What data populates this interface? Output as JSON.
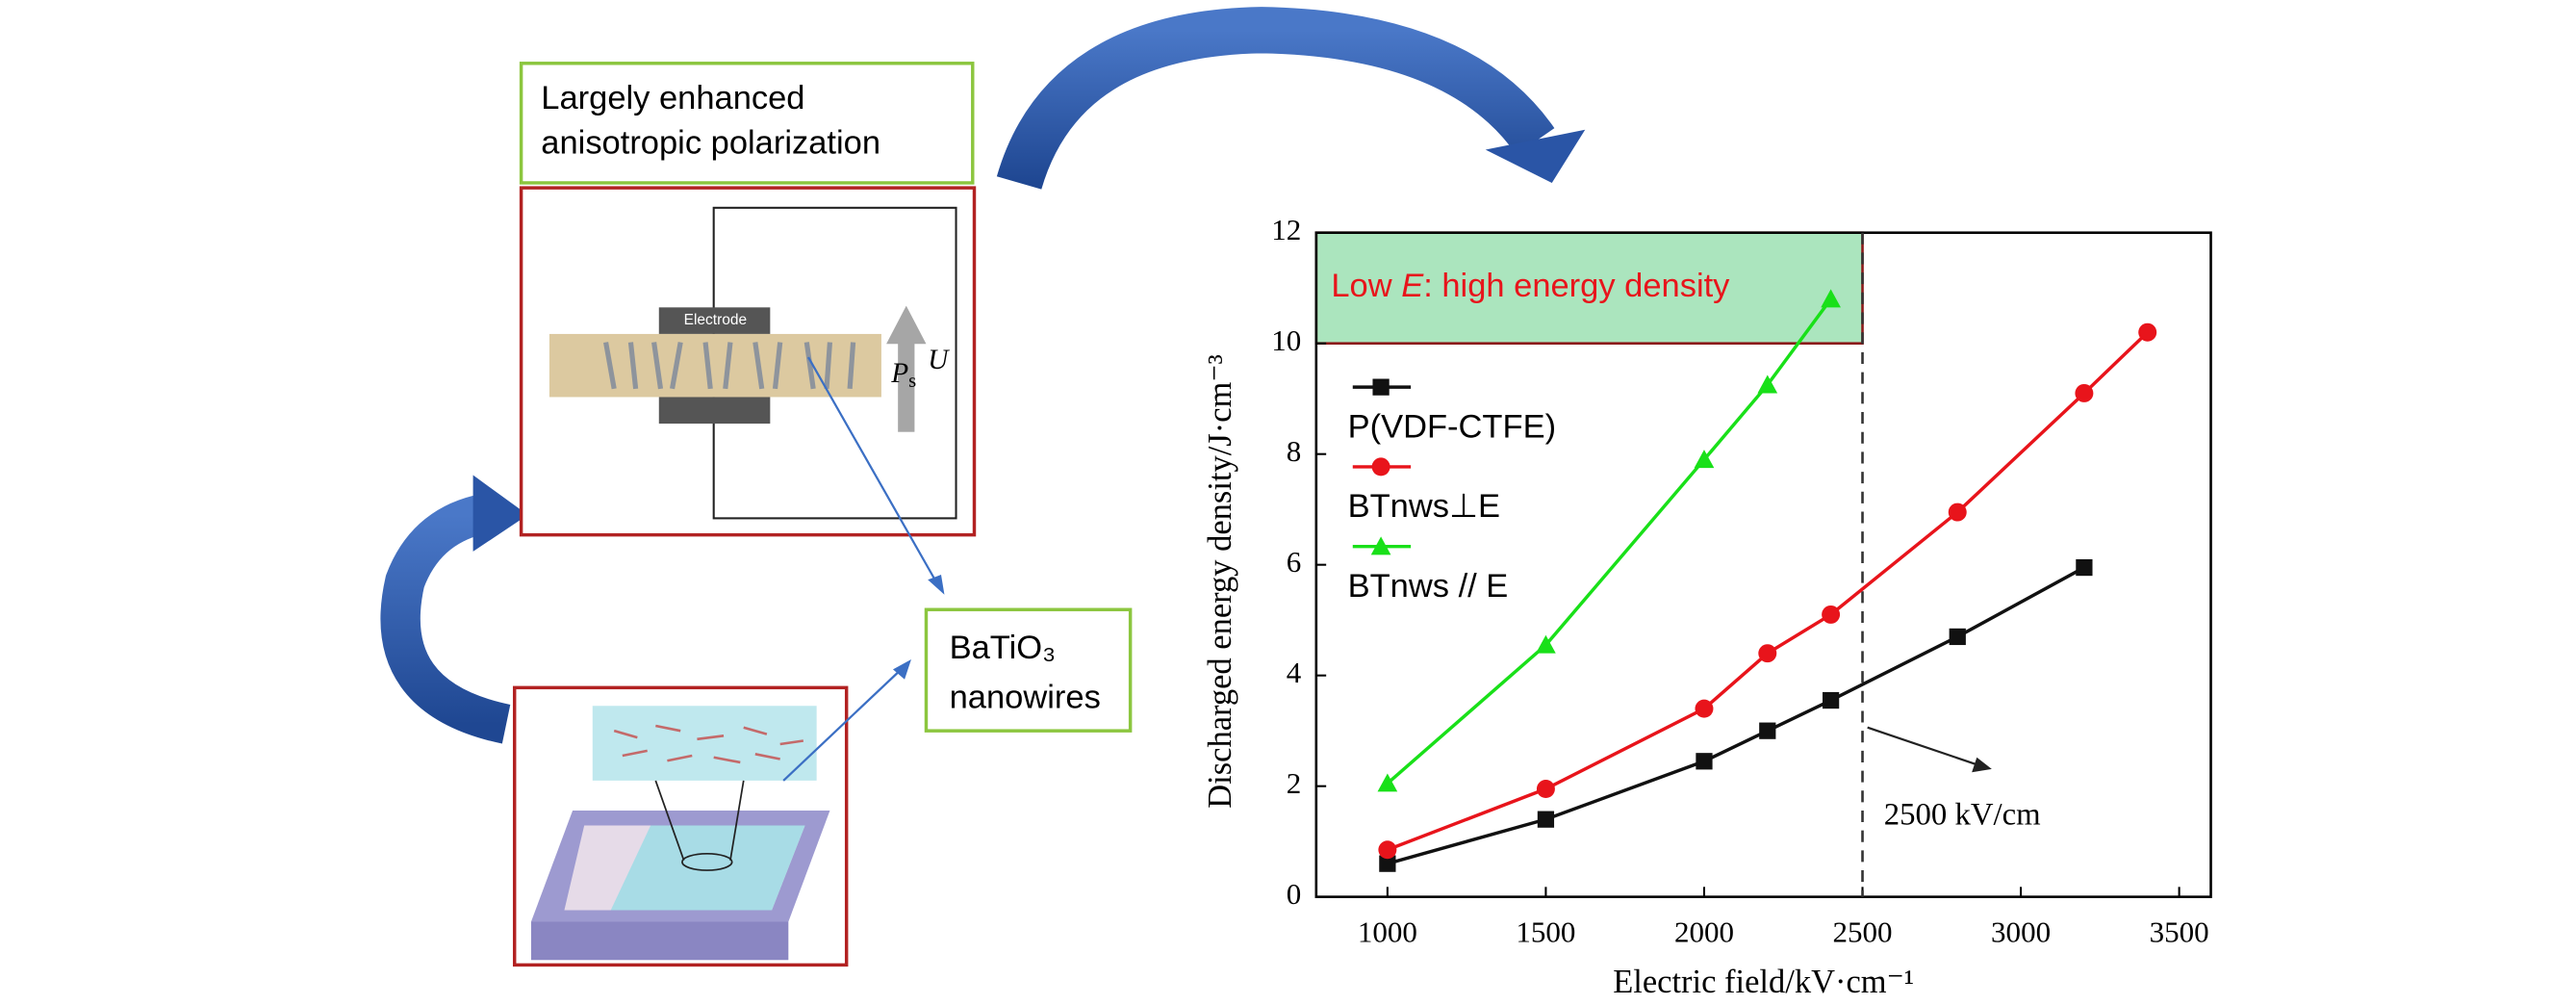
{
  "diagram": {
    "polarization_box": [
      "Largely enhanced",
      "anisotropic polarization"
    ],
    "electrode": "Electrode",
    "ps_symbol": "P",
    "ps_subscript": "s",
    "voltage": "U",
    "nanowires_box": [
      "BaTiO₃",
      "nanowires"
    ]
  },
  "chart_data": {
    "type": "line",
    "xlabel": "Electric field/kV·cm⁻¹",
    "ylabel": "Discharged energy density/J·cm⁻³",
    "xlim": [
      775,
      3600
    ],
    "ylim": [
      0,
      12
    ],
    "xticks": [
      1000,
      1500,
      2000,
      2500,
      3000,
      3500
    ],
    "yticks": [
      0,
      2,
      4,
      6,
      8,
      10,
      12
    ],
    "region": {
      "xmax": 2500,
      "ymin": 10,
      "ymax": 12,
      "color": "#8fdca8"
    },
    "region_label": [
      "Low ",
      "E",
      ": high energy density"
    ],
    "vline": 2500,
    "vline_label": "2500 kV/cm",
    "legend": "upper left",
    "series": [
      {
        "name": "P(VDF-CTFE)",
        "color": "#111111",
        "marker": "square",
        "x": [
          1000,
          1500,
          2000,
          2200,
          2400,
          2800,
          3200
        ],
        "values": [
          0.6,
          1.4,
          2.45,
          3.0,
          3.55,
          4.7,
          5.95
        ]
      },
      {
        "name": "BTnws⊥E",
        "color": "#e8141b",
        "marker": "circle",
        "x": [
          1000,
          1500,
          2000,
          2200,
          2400,
          2800,
          3200,
          3400
        ],
        "values": [
          0.85,
          1.95,
          3.4,
          4.4,
          5.1,
          6.95,
          9.1,
          10.2
        ]
      },
      {
        "name": "BTnws // E",
        "color": "#19e019",
        "marker": "triangle",
        "x": [
          1000,
          1500,
          2000,
          2200,
          2400
        ],
        "values": [
          2.05,
          4.55,
          7.9,
          9.25,
          10.8
        ]
      }
    ]
  }
}
